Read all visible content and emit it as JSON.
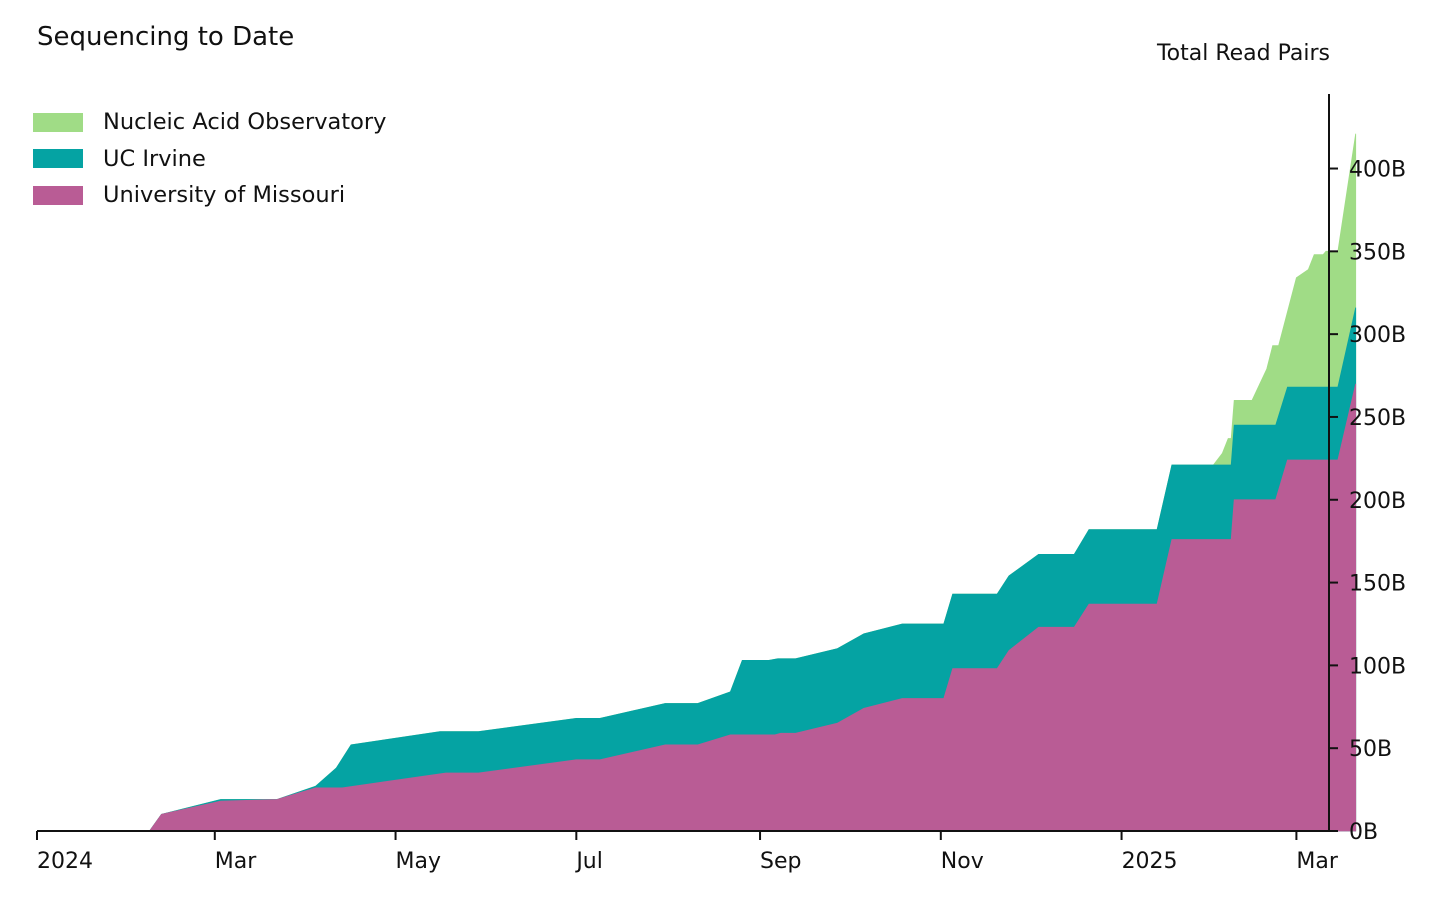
{
  "chart_data": {
    "type": "area",
    "stacked": true,
    "title": "Sequencing to Date",
    "ylabel": "Total Read Pairs",
    "xlabel": "",
    "y_axis_side": "right",
    "x_start_day": 0,
    "x_end_day": 436,
    "ylim": [
      0,
      445
    ],
    "y_unit": "B",
    "xticks": [
      {
        "label": "2024",
        "day": 0
      },
      {
        "label": "Mar",
        "day": 60
      },
      {
        "label": "May",
        "day": 121
      },
      {
        "label": "Jul",
        "day": 182
      },
      {
        "label": "Sep",
        "day": 244
      },
      {
        "label": "Nov",
        "day": 305
      },
      {
        "label": "2025",
        "day": 366
      },
      {
        "label": "Mar",
        "day": 425
      }
    ],
    "yticks": [
      {
        "label": "0B",
        "value": 0
      },
      {
        "label": "50B",
        "value": 50
      },
      {
        "label": "100B",
        "value": 100
      },
      {
        "label": "150B",
        "value": 150
      },
      {
        "label": "200B",
        "value": 200
      },
      {
        "label": "250B",
        "value": 250
      },
      {
        "label": "300B",
        "value": 300
      },
      {
        "label": "350B",
        "value": 350
      },
      {
        "label": "400B",
        "value": 400
      }
    ],
    "legend_position": "top-left",
    "series": [
      {
        "name": "University of Missouri",
        "color": "#b95c95",
        "points": [
          [
            0,
            0
          ],
          [
            38,
            0
          ],
          [
            42,
            10
          ],
          [
            62,
            18
          ],
          [
            81,
            19
          ],
          [
            94,
            26
          ],
          [
            103,
            26
          ],
          [
            138,
            35
          ],
          [
            149,
            35
          ],
          [
            182,
            43
          ],
          [
            190,
            43
          ],
          [
            212,
            52
          ],
          [
            223,
            52
          ],
          [
            234,
            58
          ],
          [
            249,
            58
          ],
          [
            251,
            59
          ],
          [
            256,
            59
          ],
          [
            270,
            65
          ],
          [
            279,
            74
          ],
          [
            292,
            80
          ],
          [
            306,
            80
          ],
          [
            309,
            98
          ],
          [
            324,
            98
          ],
          [
            328,
            109
          ],
          [
            338,
            123
          ],
          [
            350,
            123
          ],
          [
            355,
            137
          ],
          [
            378,
            137
          ],
          [
            383,
            176
          ],
          [
            403,
            176
          ],
          [
            404,
            200
          ],
          [
            418,
            200
          ],
          [
            422,
            224
          ],
          [
            439,
            224
          ],
          [
            445,
            270
          ]
        ]
      },
      {
        "name": "UC Irvine",
        "color": "#05a3a3",
        "points": [
          [
            0,
            0
          ],
          [
            38,
            0
          ],
          [
            42,
            10
          ],
          [
            62,
            19
          ],
          [
            81,
            19
          ],
          [
            94,
            27
          ],
          [
            101,
            38
          ],
          [
            106,
            52
          ],
          [
            136,
            60
          ],
          [
            149,
            60
          ],
          [
            182,
            68
          ],
          [
            190,
            68
          ],
          [
            212,
            77
          ],
          [
            223,
            77
          ],
          [
            234,
            84
          ],
          [
            238,
            103
          ],
          [
            247,
            103
          ],
          [
            250,
            104
          ],
          [
            256,
            104
          ],
          [
            270,
            110
          ],
          [
            279,
            119
          ],
          [
            292,
            125
          ],
          [
            306,
            125
          ],
          [
            309,
            143
          ],
          [
            324,
            143
          ],
          [
            328,
            154
          ],
          [
            338,
            167
          ],
          [
            350,
            167
          ],
          [
            355,
            182
          ],
          [
            378,
            182
          ],
          [
            383,
            221
          ],
          [
            403,
            221
          ],
          [
            404,
            245
          ],
          [
            418,
            245
          ],
          [
            422,
            268
          ],
          [
            439,
            268
          ],
          [
            445,
            316
          ]
        ]
      },
      {
        "name": "Nucleic Acid Observatory",
        "color": "#a0dc86",
        "points": [
          [
            0,
            0
          ],
          [
            38,
            0
          ],
          [
            42,
            10
          ],
          [
            62,
            19
          ],
          [
            81,
            19
          ],
          [
            94,
            27
          ],
          [
            101,
            38
          ],
          [
            106,
            52
          ],
          [
            136,
            60
          ],
          [
            149,
            60
          ],
          [
            182,
            68
          ],
          [
            190,
            68
          ],
          [
            212,
            77
          ],
          [
            223,
            77
          ],
          [
            234,
            84
          ],
          [
            238,
            103
          ],
          [
            247,
            103
          ],
          [
            250,
            104
          ],
          [
            256,
            104
          ],
          [
            270,
            110
          ],
          [
            279,
            119
          ],
          [
            292,
            125
          ],
          [
            306,
            125
          ],
          [
            309,
            143
          ],
          [
            324,
            143
          ],
          [
            328,
            154
          ],
          [
            338,
            167
          ],
          [
            350,
            167
          ],
          [
            355,
            182
          ],
          [
            378,
            182
          ],
          [
            383,
            221
          ],
          [
            397,
            221
          ],
          [
            400,
            228
          ],
          [
            402,
            237
          ],
          [
            403,
            237
          ],
          [
            404,
            260
          ],
          [
            410,
            260
          ],
          [
            415,
            279
          ],
          [
            417,
            293
          ],
          [
            419,
            293
          ],
          [
            425,
            334
          ],
          [
            429,
            339
          ],
          [
            431,
            348
          ],
          [
            434,
            348
          ],
          [
            435,
            350
          ],
          [
            439,
            350
          ],
          [
            445,
            421
          ]
        ]
      }
    ]
  }
}
